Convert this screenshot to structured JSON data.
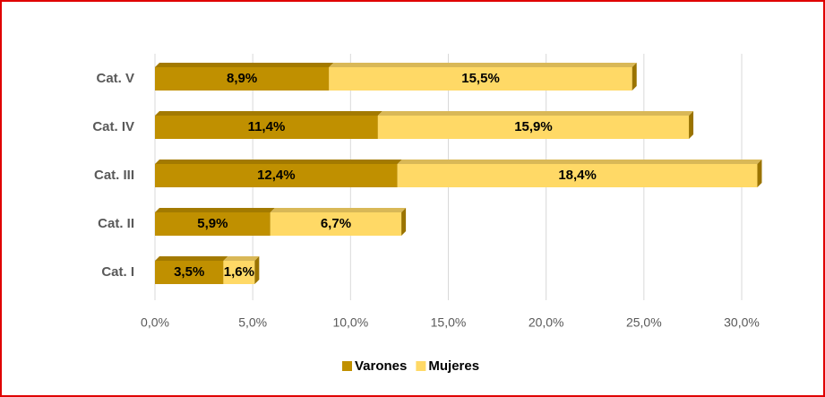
{
  "chart_data": {
    "type": "stacked-bar-horizontal-3d",
    "categories": [
      "Cat. I",
      "Cat. II",
      "Cat. III",
      "Cat. IV",
      "Cat. V"
    ],
    "series": [
      {
        "name": "Varones",
        "color": "#c09000",
        "values": [
          3.5,
          5.9,
          12.4,
          11.4,
          8.9
        ],
        "value_labels": [
          "3,5%",
          "5,9%",
          "12,4%",
          "11,4%",
          "8,9%"
        ]
      },
      {
        "name": "Mujeres",
        "color": "#ffd966",
        "values": [
          1.6,
          6.7,
          18.4,
          15.9,
          15.5
        ],
        "value_labels": [
          "1,6%",
          "6,7%",
          "18,4%",
          "15,9%",
          "15,5%"
        ]
      }
    ],
    "xlim": [
      0,
      30
    ],
    "xticks": [
      {
        "value": 0,
        "label": "0,0%"
      },
      {
        "value": 5,
        "label": "5,0%"
      },
      {
        "value": 10,
        "label": "10,0%"
      },
      {
        "value": 15,
        "label": "15,0%"
      },
      {
        "value": 20,
        "label": "20,0%"
      },
      {
        "value": 25,
        "label": "25,0%"
      },
      {
        "value": 30,
        "label": "30,0%"
      }
    ],
    "grid": true,
    "legend": "bottom"
  }
}
